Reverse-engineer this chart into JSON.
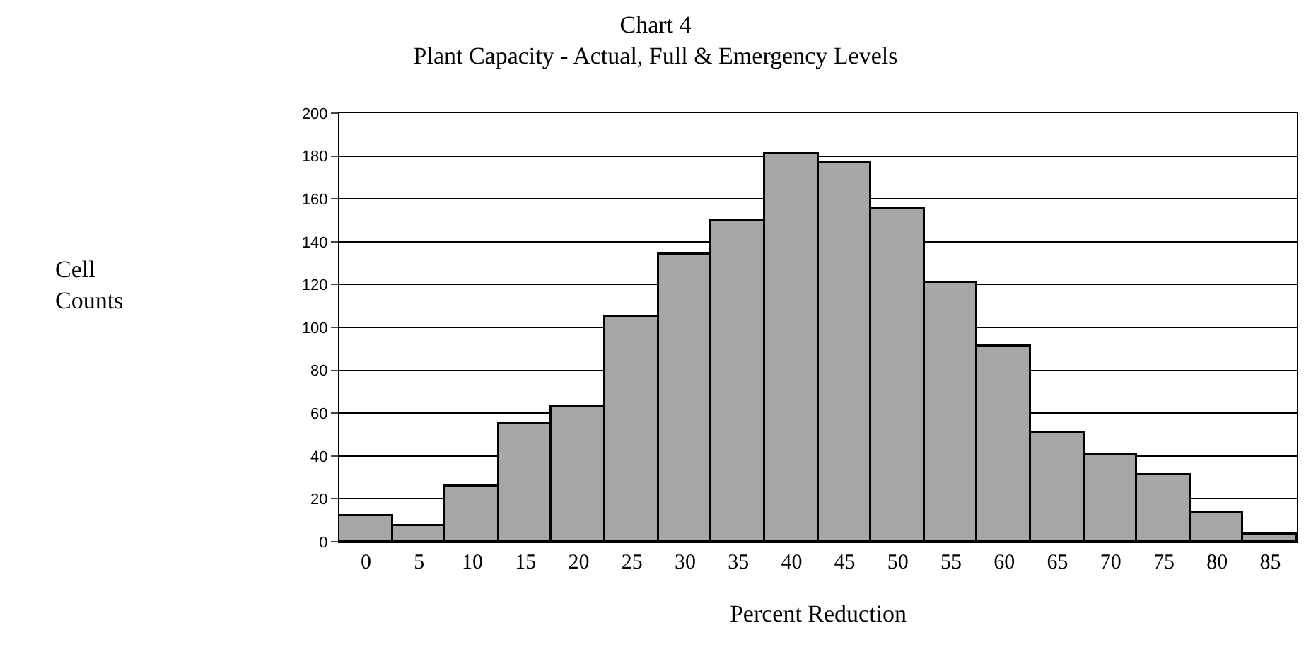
{
  "chart_data": {
    "type": "bar",
    "title": "Chart 4",
    "subtitle": "Plant Capacity - Actual, Full & Emergency Levels",
    "xlabel": "Percent Reduction",
    "annotations": [
      "Cell Counts"
    ],
    "categories": [
      "0",
      "5",
      "10",
      "15",
      "20",
      "25",
      "30",
      "35",
      "40",
      "45",
      "50",
      "55",
      "60",
      "65",
      "70",
      "75",
      "80",
      "85"
    ],
    "values": [
      12,
      7,
      26,
      55,
      63,
      105,
      134,
      150,
      181,
      177,
      155,
      121,
      91,
      51,
      40,
      31,
      13,
      3
    ],
    "color": "#a6a6a6",
    "ylim": [
      0,
      200
    ],
    "yticks": [
      0,
      20,
      40,
      60,
      80,
      100,
      120,
      140,
      160,
      180,
      200
    ],
    "grid": "y"
  }
}
